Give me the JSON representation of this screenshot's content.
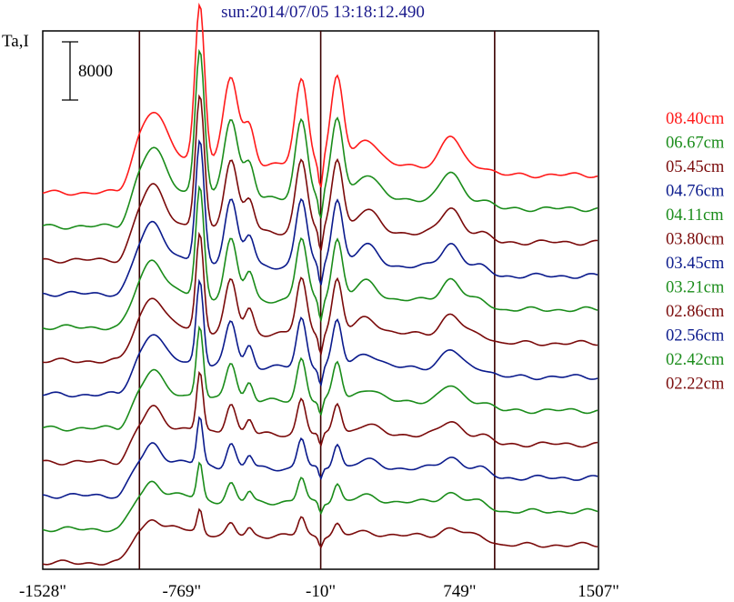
{
  "chart_data": {
    "type": "line",
    "title": "sun:2014/07/05 13:18:12.490",
    "ylabel": "Ta,I",
    "scale_bar_label": "8000",
    "x_tick_labels": [
      "-1528\"",
      "-769\"",
      "-10\"",
      "749\"",
      "1507\""
    ],
    "xlim": [
      -1528,
      1507
    ],
    "vertical_lines": [
      -1000,
      -10,
      940
    ],
    "series": [
      {
        "name": "08.40cm",
        "color": "#ff1a1a"
      },
      {
        "name": "06.67cm",
        "color": "#1a8c1a"
      },
      {
        "name": "05.45cm",
        "color": "#7a0a0a"
      },
      {
        "name": "04.76cm",
        "color": "#0a1a8c"
      },
      {
        "name": "04.11cm",
        "color": "#1a8c1a"
      },
      {
        "name": "03.80cm",
        "color": "#7a0a0a"
      },
      {
        "name": "03.45cm",
        "color": "#0a1a8c"
      },
      {
        "name": "03.21cm",
        "color": "#1a8c1a"
      },
      {
        "name": "02.86cm",
        "color": "#7a0a0a"
      },
      {
        "name": "02.56cm",
        "color": "#0a1a8c"
      },
      {
        "name": "02.42cm",
        "color": "#1a8c1a"
      },
      {
        "name": "02.22cm",
        "color": "#7a0a0a"
      }
    ]
  }
}
